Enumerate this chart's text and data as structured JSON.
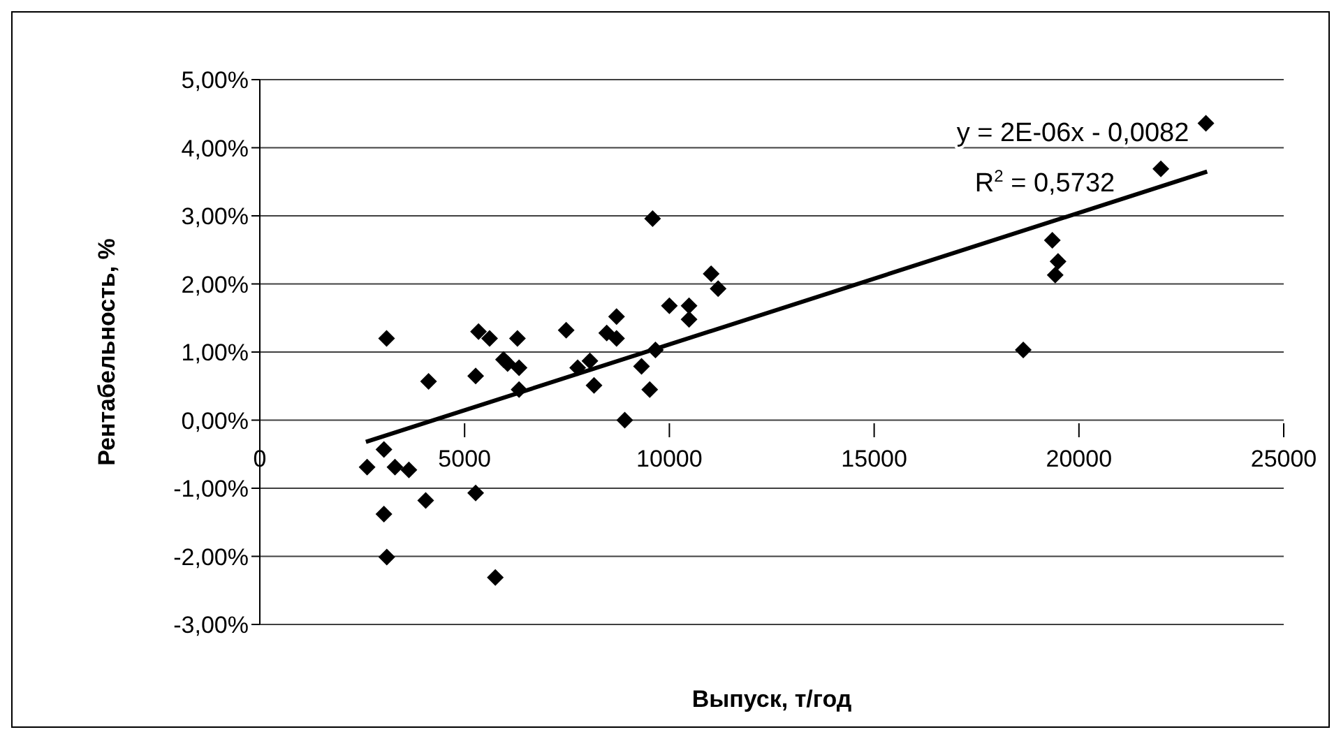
{
  "chart_data": {
    "type": "scatter",
    "xlabel": "Выпуск, т/год",
    "ylabel": "Рентабельность, %",
    "annotations": [
      "y = 2E-06x - 0,0082",
      "R$^{2}$ = 0,5732"
    ],
    "x": [
      3095,
      2620,
      3030,
      3300,
      3640,
      3030,
      3100,
      4120,
      4050,
      5270,
      5270,
      5750,
      5340,
      5610,
      6290,
      5950,
      6050,
      6330,
      6330,
      7480,
      7760,
      8060,
      8160,
      8470,
      8710,
      8710,
      8910,
      9320,
      9520,
      9590,
      9660,
      10000,
      10480,
      10480,
      11020,
      11190,
      23100,
      22000,
      19350,
      19490,
      19420,
      18640
    ],
    "series": [
      {
        "color": "#000000",
        "values": [
          1.2,
          -0.69,
          -0.43,
          -0.69,
          -0.73,
          -1.38,
          -2.01,
          0.57,
          -1.18,
          0.65,
          -1.07,
          -2.31,
          1.3,
          1.2,
          1.2,
          0.89,
          0.83,
          0.77,
          0.45,
          1.32,
          0.77,
          0.87,
          0.51,
          1.28,
          1.52,
          1.2,
          0.0,
          0.79,
          0.45,
          2.96,
          1.03,
          1.68,
          1.48,
          1.68,
          2.15,
          1.93,
          4.36,
          3.69,
          2.64,
          2.33,
          2.13,
          1.03
        ]
      },
      {
        "type": "line",
        "color": "#000000",
        "marker": "none",
        "x": [
          2590,
          23130
        ],
        "values": [
          -0.32,
          3.65
        ]
      }
    ],
    "marker": "diamond",
    "grid": "y",
    "xlim": [
      0,
      25000
    ],
    "xticks": [
      0,
      5000,
      10000,
      15000,
      20000,
      25000
    ],
    "ylim": [
      -3,
      5
    ],
    "yticks": [
      {
        "value": -3,
        "label": "-3,00%"
      },
      {
        "value": -2,
        "label": "-2,00%"
      },
      {
        "value": -1,
        "label": "-1,00%"
      },
      {
        "value": 0,
        "label": "0,00%"
      },
      {
        "value": 1,
        "label": "1,00%"
      },
      {
        "value": 2,
        "label": "2,00%"
      },
      {
        "value": 3,
        "label": "3,00%"
      },
      {
        "value": 4,
        "label": "4,00%"
      },
      {
        "value": 5,
        "label": "5,00%"
      }
    ]
  }
}
